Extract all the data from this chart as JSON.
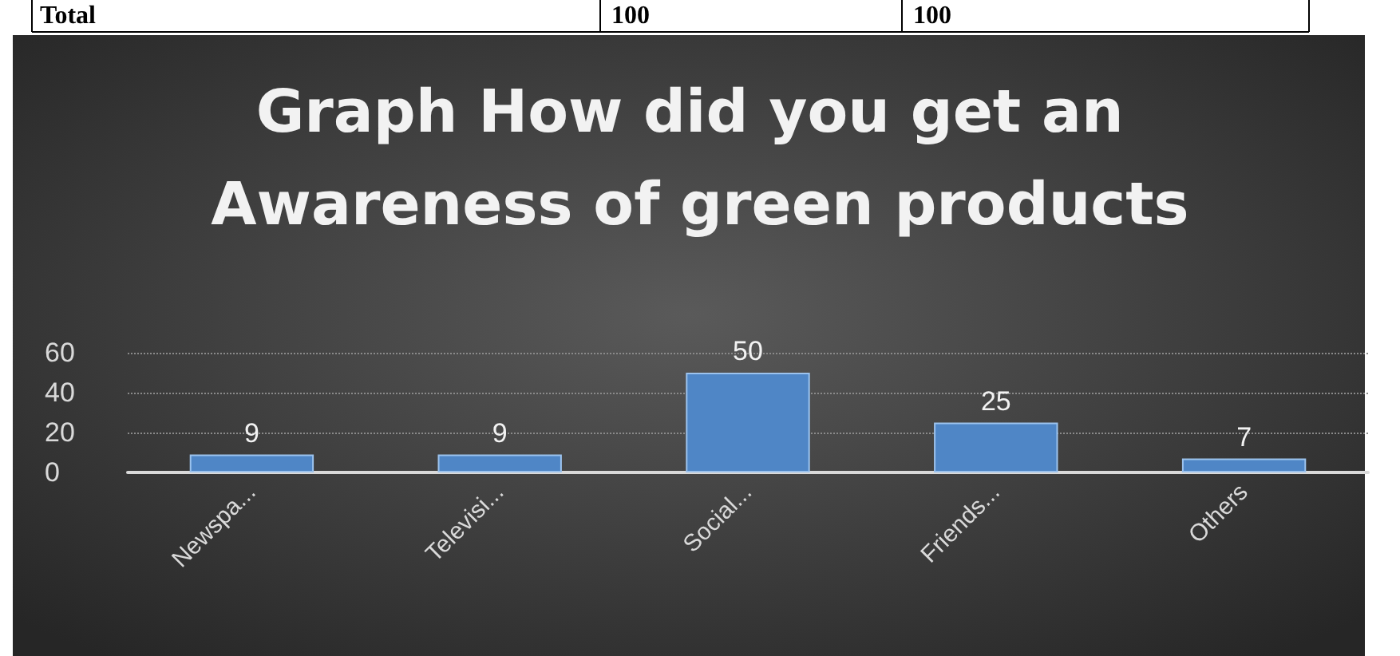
{
  "chart_data": {
    "type": "bar",
    "title": "Graph How did you get an Awareness of green products",
    "categories": [
      "Newspa...",
      "Televisi...",
      "Social...",
      "Friends...",
      "Others"
    ],
    "values": [
      9,
      9,
      50,
      25,
      7
    ],
    "color": "#4f86c6",
    "ylim": [
      0,
      60
    ],
    "yticks": [
      0,
      20,
      40,
      60
    ],
    "grid": "y",
    "data_labels": true,
    "annotations": [
      "Total",
      "100",
      "100"
    ]
  }
}
